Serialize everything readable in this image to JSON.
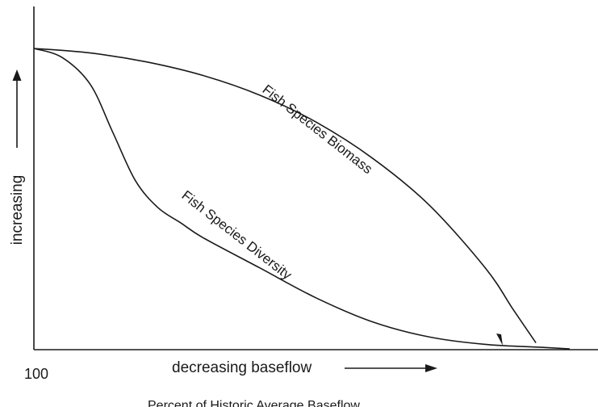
{
  "chart_data": {
    "type": "line",
    "title": "",
    "xlabel": "decreasing baseflow",
    "xlabel_secondary": "Percent of Historic Average Baseflow",
    "ylabel": "increasing",
    "x_start_label": "100",
    "x_units": "percent of historic average baseflow",
    "xlim": [
      100,
      0
    ],
    "ylim": [
      0,
      1
    ],
    "grid": false,
    "legend": "none (curves labeled inline)",
    "series": [
      {
        "name": "Fish Species Biomass",
        "x": [
          100,
          90,
          80,
          70,
          60,
          50,
          40,
          30,
          20,
          15,
          11
        ],
        "y": [
          1.0,
          0.985,
          0.955,
          0.91,
          0.845,
          0.755,
          0.635,
          0.48,
          0.27,
          0.13,
          0.02
        ]
      },
      {
        "name": "Fish Species Diversity",
        "x": [
          100,
          95,
          90,
          86,
          82,
          78,
          74,
          70,
          60,
          50,
          40,
          30,
          20,
          10,
          5
        ],
        "y": [
          1.0,
          0.97,
          0.88,
          0.72,
          0.56,
          0.47,
          0.42,
          0.37,
          0.27,
          0.17,
          0.09,
          0.04,
          0.015,
          0.005,
          0.0
        ]
      }
    ]
  },
  "colors": {
    "ink": "#1a1a1a",
    "background": "#ffffff"
  }
}
